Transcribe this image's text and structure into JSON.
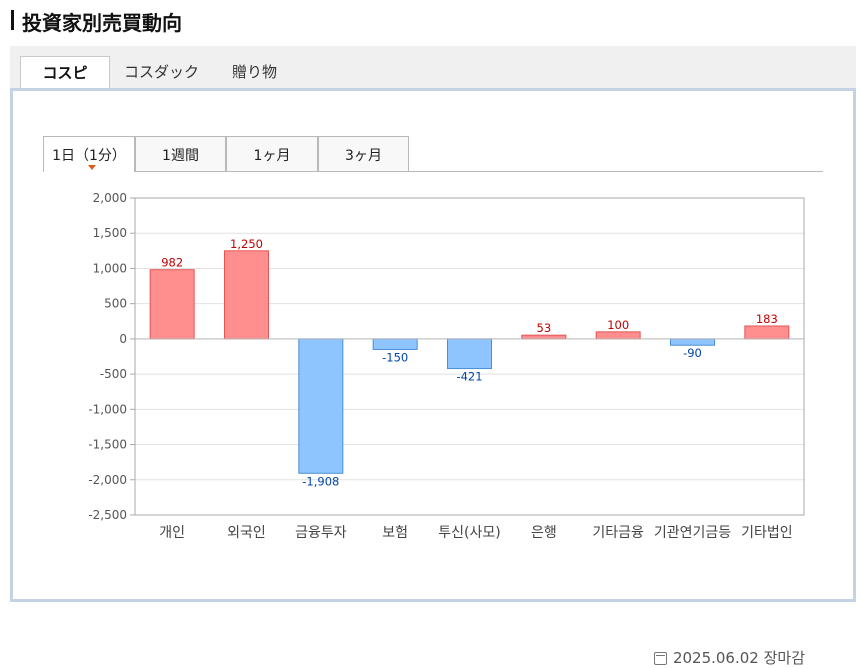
{
  "page": {
    "title": "投資家別売買動向"
  },
  "main_tabs": [
    {
      "label": "コスピ",
      "active": true
    },
    {
      "label": "コスダック",
      "active": false
    },
    {
      "label": "贈り物",
      "active": false
    }
  ],
  "sub_tabs": [
    {
      "label": "1日（1分）",
      "active": true
    },
    {
      "label": "1週間",
      "active": false
    },
    {
      "label": "1ヶ月",
      "active": false
    },
    {
      "label": "3ヶ月",
      "active": false
    }
  ],
  "footer": {
    "timestamp": "2025.06.02 장마감",
    "icon": "calendar-clock-icon"
  },
  "chart_data": {
    "type": "bar",
    "categories": [
      "개인",
      "외국인",
      "금융투자",
      "보험",
      "투신(사모)",
      "은행",
      "기타금융",
      "기관연기금등",
      "기타법인"
    ],
    "values": [
      982,
      1250,
      -1908,
      -150,
      -421,
      53,
      100,
      -90,
      183
    ],
    "data_labels": [
      "982",
      "1,250",
      "-1,908",
      "-150",
      "-421",
      "53",
      "100",
      "-90",
      "183"
    ],
    "ylim": [
      -2500,
      2000
    ],
    "yticks": [
      2000,
      1500,
      1000,
      500,
      0,
      -500,
      -1000,
      -1500,
      -2000,
      -2500
    ],
    "ytick_labels": [
      "2,000",
      "1,500",
      "1,000",
      "500",
      "0",
      "-500",
      "-1,000",
      "-1,500",
      "-2,000",
      "-2,500"
    ],
    "grid": true,
    "colors": {
      "positive_fill": "#ff8f8f",
      "positive_stroke": "#e35555",
      "positive_label": "#c00000",
      "negative_fill": "#8ec5ff",
      "negative_stroke": "#4a8fd6",
      "negative_label": "#0044aa",
      "grid": "#e2e2e2",
      "axis": "#aaaaaa"
    }
  }
}
